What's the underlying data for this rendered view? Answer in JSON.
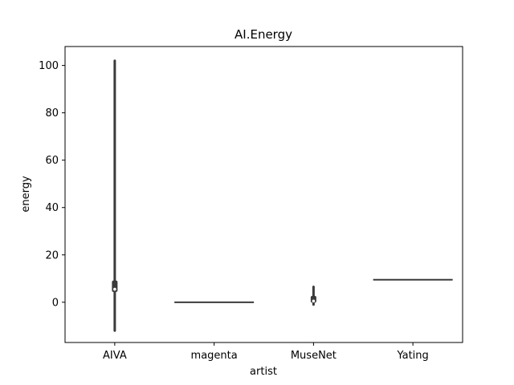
{
  "chart_data": {
    "type": "violin",
    "title": "AI.Energy",
    "xlabel": "artist",
    "ylabel": "energy",
    "categories": [
      "AIVA",
      "magenta",
      "MuseNet",
      "Yating"
    ],
    "ylim": [
      -17,
      108
    ],
    "yticks": [
      0,
      20,
      40,
      60,
      80,
      100
    ],
    "ytick_labels": [
      "0",
      "20",
      "40",
      "60",
      "80",
      "100"
    ],
    "grid": false,
    "series": [
      {
        "category": "AIVA",
        "min": -12,
        "q1": 4.5,
        "median": 5.5,
        "q3": 9,
        "max": 102
      },
      {
        "category": "magenta",
        "min": 0,
        "q1": 0,
        "median": 0,
        "q3": 0,
        "max": 0
      },
      {
        "category": "MuseNet",
        "min": -1,
        "q1": 0,
        "median": 0.5,
        "q3": 2.5,
        "max": 6.5
      },
      {
        "category": "Yating",
        "min": 9.5,
        "q1": 9.5,
        "median": 9.5,
        "q3": 9.5,
        "max": 9.5
      }
    ],
    "colors": {
      "stroke": "#3b3b3b",
      "median_fill": "#ffffff",
      "axes": "#000000"
    }
  }
}
